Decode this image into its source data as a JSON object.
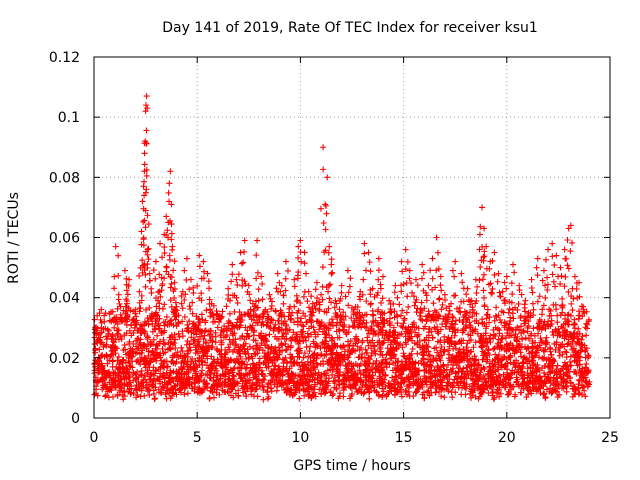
{
  "chart_data": {
    "type": "scatter",
    "title": "Day 141 of 2019, Rate Of TEC Index for receiver ksu1",
    "xlabel": "GPS time / hours",
    "ylabel": "ROTI / TECUs",
    "xlim": [
      0,
      25
    ],
    "ylim": [
      0,
      0.12
    ],
    "xticks": [
      "0",
      "5",
      "10",
      "15",
      "20",
      "25"
    ],
    "yticks": [
      "0",
      "0.02",
      "0.04",
      "0.06",
      "0.08",
      "0.1",
      "0.12"
    ],
    "grid": true,
    "marker": "+",
    "color": "#ff0000",
    "series": [
      {
        "name": "ROTI",
        "points": [
          [
            0.1,
            0.012
          ],
          [
            0.2,
            0.018
          ],
          [
            0.3,
            0.025
          ],
          [
            0.4,
            0.015
          ],
          [
            0.5,
            0.032
          ],
          [
            0.6,
            0.021
          ],
          [
            0.7,
            0.028
          ],
          [
            0.8,
            0.014
          ],
          [
            0.9,
            0.024
          ],
          [
            1.0,
            0.033
          ],
          [
            1.05,
            0.057
          ],
          [
            1.2,
            0.041
          ],
          [
            1.3,
            0.027
          ],
          [
            1.4,
            0.019
          ],
          [
            1.5,
            0.049
          ],
          [
            1.6,
            0.038
          ],
          [
            1.7,
            0.046
          ],
          [
            1.8,
            0.031
          ],
          [
            1.9,
            0.022
          ],
          [
            2.0,
            0.036
          ],
          [
            2.1,
            0.029
          ],
          [
            2.2,
            0.042
          ],
          [
            2.3,
            0.062
          ],
          [
            2.35,
            0.072
          ],
          [
            2.4,
            0.077
          ],
          [
            2.45,
            0.088
          ],
          [
            2.48,
            0.092
          ],
          [
            2.5,
            0.102
          ],
          [
            2.52,
            0.104
          ],
          [
            2.55,
            0.107
          ],
          [
            2.58,
            0.103
          ],
          [
            2.6,
            0.056
          ],
          [
            2.7,
            0.048
          ],
          [
            2.8,
            0.034
          ],
          [
            2.9,
            0.026
          ],
          [
            3.0,
            0.052
          ],
          [
            3.1,
            0.039
          ],
          [
            3.2,
            0.058
          ],
          [
            3.3,
            0.044
          ],
          [
            3.4,
            0.061
          ],
          [
            3.5,
            0.067
          ],
          [
            3.6,
            0.065
          ],
          [
            3.65,
            0.078
          ],
          [
            3.7,
            0.082
          ],
          [
            3.75,
            0.071
          ],
          [
            3.8,
            0.057
          ],
          [
            3.9,
            0.045
          ],
          [
            4.0,
            0.037
          ],
          [
            4.1,
            0.028
          ],
          [
            4.3,
            0.042
          ],
          [
            4.5,
            0.053
          ],
          [
            4.7,
            0.046
          ],
          [
            4.9,
            0.031
          ],
          [
            5.1,
            0.054
          ],
          [
            5.3,
            0.052
          ],
          [
            5.5,
            0.048
          ],
          [
            5.7,
            0.038
          ],
          [
            5.9,
            0.027
          ],
          [
            6.1,
            0.034
          ],
          [
            6.3,
            0.029
          ],
          [
            6.5,
            0.043
          ],
          [
            6.7,
            0.051
          ],
          [
            6.9,
            0.046
          ],
          [
            7.1,
            0.055
          ],
          [
            7.3,
            0.059
          ],
          [
            7.5,
            0.044
          ],
          [
            7.7,
            0.038
          ],
          [
            7.9,
            0.059
          ],
          [
            8.1,
            0.047
          ],
          [
            8.3,
            0.036
          ],
          [
            8.5,
            0.041
          ],
          [
            8.7,
            0.029
          ],
          [
            8.9,
            0.048
          ],
          [
            9.1,
            0.044
          ],
          [
            9.3,
            0.052
          ],
          [
            9.5,
            0.037
          ],
          [
            9.7,
            0.046
          ],
          [
            9.9,
            0.057
          ],
          [
            10.0,
            0.059
          ],
          [
            10.2,
            0.055
          ],
          [
            10.4,
            0.042
          ],
          [
            10.6,
            0.038
          ],
          [
            10.8,
            0.045
          ],
          [
            11.0,
            0.041
          ],
          [
            11.1,
            0.09
          ],
          [
            11.2,
            0.071
          ],
          [
            11.3,
            0.08
          ],
          [
            11.4,
            0.057
          ],
          [
            11.5,
            0.051
          ],
          [
            11.7,
            0.039
          ],
          [
            12.0,
            0.044
          ],
          [
            12.3,
            0.049
          ],
          [
            12.6,
            0.036
          ],
          [
            12.9,
            0.042
          ],
          [
            13.1,
            0.058
          ],
          [
            13.3,
            0.055
          ],
          [
            13.5,
            0.043
          ],
          [
            13.8,
            0.053
          ],
          [
            14.0,
            0.047
          ],
          [
            14.3,
            0.039
          ],
          [
            14.6,
            0.044
          ],
          [
            14.9,
            0.052
          ],
          [
            15.1,
            0.056
          ],
          [
            15.3,
            0.049
          ],
          [
            15.6,
            0.046
          ],
          [
            15.9,
            0.051
          ],
          [
            16.2,
            0.044
          ],
          [
            16.4,
            0.053
          ],
          [
            16.6,
            0.06
          ],
          [
            16.8,
            0.047
          ],
          [
            17.0,
            0.041
          ],
          [
            17.3,
            0.038
          ],
          [
            17.5,
            0.052
          ],
          [
            17.8,
            0.048
          ],
          [
            18.1,
            0.043
          ],
          [
            18.3,
            0.039
          ],
          [
            18.5,
            0.046
          ],
          [
            18.7,
            0.061
          ],
          [
            18.8,
            0.07
          ],
          [
            18.9,
            0.063
          ],
          [
            19.0,
            0.057
          ],
          [
            19.2,
            0.052
          ],
          [
            19.4,
            0.055
          ],
          [
            19.6,
            0.048
          ],
          [
            19.8,
            0.042
          ],
          [
            20.0,
            0.047
          ],
          [
            20.3,
            0.051
          ],
          [
            20.6,
            0.044
          ],
          [
            20.9,
            0.039
          ],
          [
            21.2,
            0.046
          ],
          [
            21.5,
            0.053
          ],
          [
            21.8,
            0.049
          ],
          [
            22.0,
            0.056
          ],
          [
            22.2,
            0.058
          ],
          [
            22.4,
            0.054
          ],
          [
            22.6,
            0.05
          ],
          [
            22.8,
            0.056
          ],
          [
            23.0,
            0.063
          ],
          [
            23.1,
            0.064
          ],
          [
            23.3,
            0.047
          ],
          [
            23.5,
            0.045
          ],
          [
            23.7,
            0.037
          ],
          [
            23.9,
            0.031
          ],
          [
            24.0,
            0.012
          ]
        ]
      }
    ],
    "base_band": {
      "low": 0.006,
      "high": 0.032,
      "density_per_hour": 160
    }
  }
}
